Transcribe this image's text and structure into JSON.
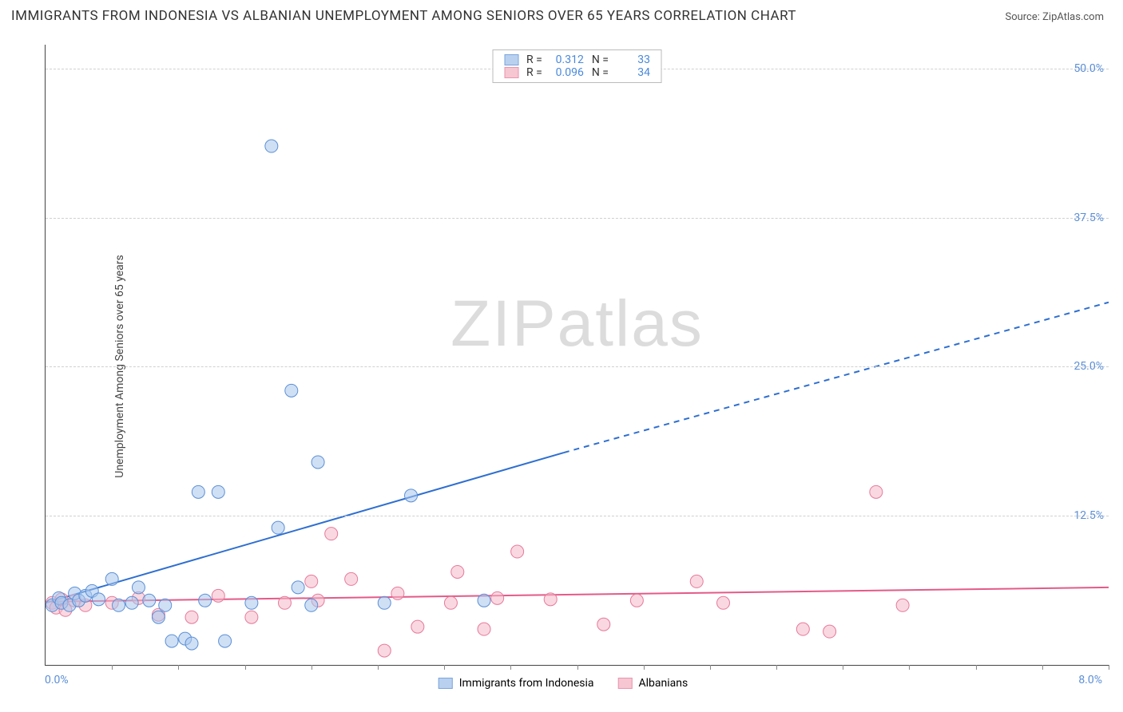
{
  "title": "IMMIGRANTS FROM INDONESIA VS ALBANIAN UNEMPLOYMENT AMONG SENIORS OVER 65 YEARS CORRELATION CHART",
  "source_label": "Source: ZipAtlas.com",
  "ylabel": "Unemployment Among Seniors over 65 years",
  "watermark": "ZIPatlas",
  "x_origin_label": "0.0%",
  "x_max_label": "8.0%",
  "chart": {
    "xlim": [
      0,
      8.0
    ],
    "ylim": [
      0,
      52.0
    ],
    "ytick_labels": [
      "12.5%",
      "25.0%",
      "37.5%",
      "50.0%"
    ],
    "ytick_values": [
      12.5,
      25.0,
      37.5,
      50.0
    ],
    "xtick_positions": [
      0.5,
      1.0,
      1.5,
      2.0,
      2.5,
      3.0,
      3.5,
      4.0,
      4.5,
      5.0,
      5.5,
      6.0,
      6.5,
      7.0,
      7.5,
      8.0
    ],
    "grid_color": "#d0d0d0",
    "background": "#ffffff",
    "marker_radius": 8,
    "series": {
      "indonesia": {
        "label": "Immigrants from Indonesia",
        "fill": "#a8c6ec",
        "stroke": "#5b8fd6",
        "fill_opacity": 0.55,
        "trend": {
          "solid_x_end": 3.9,
          "y_start": 5.2,
          "y_at_solid_end": 17.8,
          "y_at_xmax": 30.4,
          "stroke": "#2e6fd0",
          "width": 2
        },
        "R": "0.312",
        "N": "33",
        "points": [
          [
            0.05,
            5.0
          ],
          [
            0.1,
            5.6
          ],
          [
            0.12,
            5.2
          ],
          [
            0.18,
            5.0
          ],
          [
            0.22,
            6.0
          ],
          [
            0.25,
            5.4
          ],
          [
            0.3,
            5.8
          ],
          [
            0.35,
            6.2
          ],
          [
            0.4,
            5.5
          ],
          [
            0.5,
            7.2
          ],
          [
            0.55,
            5.0
          ],
          [
            0.65,
            5.2
          ],
          [
            0.7,
            6.5
          ],
          [
            0.78,
            5.4
          ],
          [
            0.85,
            4.0
          ],
          [
            0.9,
            5.0
          ],
          [
            0.95,
            2.0
          ],
          [
            1.05,
            2.2
          ],
          [
            1.1,
            1.8
          ],
          [
            1.15,
            14.5
          ],
          [
            1.2,
            5.4
          ],
          [
            1.3,
            14.5
          ],
          [
            1.35,
            2.0
          ],
          [
            1.55,
            5.2
          ],
          [
            1.7,
            43.5
          ],
          [
            1.75,
            11.5
          ],
          [
            1.85,
            23.0
          ],
          [
            1.9,
            6.5
          ],
          [
            2.0,
            5.0
          ],
          [
            2.05,
            17.0
          ],
          [
            2.55,
            5.2
          ],
          [
            2.75,
            14.2
          ],
          [
            3.3,
            5.4
          ]
        ]
      },
      "albanians": {
        "label": "Albanians",
        "fill": "#f5b8c8",
        "stroke": "#e67a9b",
        "fill_opacity": 0.55,
        "trend": {
          "y_start": 5.3,
          "y_at_xmax": 6.5,
          "stroke": "#e45a88",
          "width": 2
        },
        "R": "0.096",
        "N": "34",
        "points": [
          [
            0.05,
            5.2
          ],
          [
            0.08,
            4.8
          ],
          [
            0.12,
            5.5
          ],
          [
            0.15,
            4.6
          ],
          [
            0.22,
            5.4
          ],
          [
            0.3,
            5.0
          ],
          [
            0.5,
            5.2
          ],
          [
            0.7,
            5.6
          ],
          [
            0.85,
            4.2
          ],
          [
            1.1,
            4.0
          ],
          [
            1.3,
            5.8
          ],
          [
            1.55,
            4.0
          ],
          [
            1.8,
            5.2
          ],
          [
            2.0,
            7.0
          ],
          [
            2.05,
            5.4
          ],
          [
            2.15,
            11.0
          ],
          [
            2.3,
            7.2
          ],
          [
            2.55,
            1.2
          ],
          [
            2.65,
            6.0
          ],
          [
            2.8,
            3.2
          ],
          [
            3.05,
            5.2
          ],
          [
            3.1,
            7.8
          ],
          [
            3.3,
            3.0
          ],
          [
            3.4,
            5.6
          ],
          [
            3.55,
            9.5
          ],
          [
            3.8,
            5.5
          ],
          [
            4.2,
            3.4
          ],
          [
            4.45,
            5.4
          ],
          [
            4.9,
            7.0
          ],
          [
            5.1,
            5.2
          ],
          [
            5.7,
            3.0
          ],
          [
            5.9,
            2.8
          ],
          [
            6.25,
            14.5
          ],
          [
            6.45,
            5.0
          ]
        ]
      }
    }
  },
  "legend_top": {
    "R_label": "R  =",
    "N_label": "N  ="
  }
}
